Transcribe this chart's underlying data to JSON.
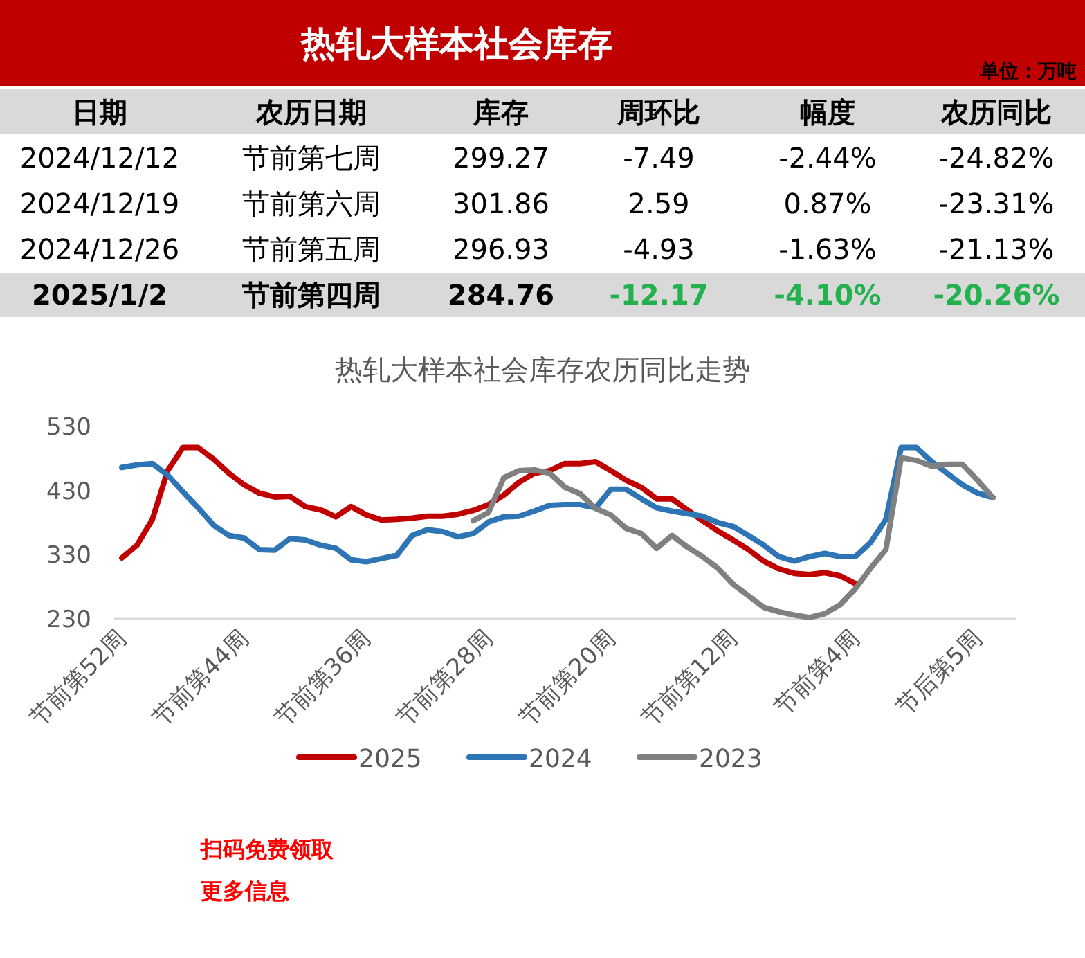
{
  "chart_data": [
    {
      "type": "other",
      "title": "热轧大样本社会库存",
      "subtitle": "单位：万吨",
      "annotations": [
        "日期",
        "农历日期",
        "库存",
        "周环比",
        "幅度",
        "农历同比",
        "2024/12/12",
        "节前第七周",
        "299.27",
        "-7.49",
        "-2.44%",
        "-24.82%",
        "2024/12/19",
        "节前第六周",
        "301.86",
        "2.59",
        "0.87%",
        "-23.31%",
        "2024/12/26",
        "节前第五周",
        "296.93",
        "-4.93",
        "-1.63%",
        "-21.13%",
        "2025/1/2",
        "节前第四周",
        "284.76",
        "-12.17",
        "-4.10%",
        "-20.26%"
      ]
    },
    {
      "type": "line",
      "title": "热轧大样本社会库存农历同比走势",
      "categories": [
        "节前第52周",
        null,
        null,
        null,
        null,
        null,
        null,
        null,
        "节前第44周",
        null,
        null,
        null,
        null,
        null,
        null,
        null,
        "节前第36周",
        null,
        null,
        null,
        null,
        null,
        null,
        null,
        "节前第28周",
        null,
        null,
        null,
        null,
        null,
        null,
        null,
        "节前第20周",
        null,
        null,
        null,
        null,
        null,
        null,
        null,
        "节前第12周",
        null,
        null,
        null,
        null,
        null,
        null,
        null,
        "节前第4周",
        null,
        null,
        null,
        null,
        null,
        null,
        null,
        "节后第5周",
        null,
        null
      ],
      "series": [
        {
          "name": "2025",
          "color": "#c00000",
          "values": [
            325,
            345,
            385,
            461,
            497,
            497,
            479,
            457,
            439,
            426,
            420,
            421,
            405,
            400,
            389,
            405,
            392,
            384,
            385,
            387,
            390,
            390,
            393,
            399,
            408,
            423,
            443,
            457,
            461,
            472,
            472,
            475,
            461,
            446,
            435,
            417,
            417,
            400,
            383,
            367,
            353,
            338,
            320,
            308,
            301,
            299,
            302,
            297,
            285,
            null,
            null,
            null,
            null,
            null,
            null,
            null,
            null,
            null,
            null
          ]
        },
        {
          "name": "2024",
          "color": "#2e75b6",
          "values": [
            466,
            470,
            472,
            454,
            428,
            403,
            376,
            360,
            356,
            338,
            337,
            355,
            353,
            345,
            340,
            322,
            319,
            324,
            329,
            360,
            369,
            366,
            358,
            363,
            381,
            389,
            390,
            398,
            407,
            408,
            408,
            403,
            432,
            432,
            417,
            403,
            398,
            394,
            390,
            380,
            374,
            360,
            345,
            327,
            320,
            327,
            332,
            327,
            327,
            349,
            385,
            497,
            497,
            475,
            457,
            439,
            426,
            419,
            null
          ]
        },
        {
          "name": "2023",
          "color": "#808080",
          "values": [
            null,
            null,
            null,
            null,
            null,
            null,
            null,
            null,
            null,
            null,
            null,
            null,
            null,
            null,
            null,
            null,
            null,
            null,
            null,
            null,
            null,
            null,
            null,
            383,
            396,
            450,
            461,
            462,
            457,
            435,
            425,
            402,
            392,
            371,
            363,
            340,
            360,
            342,
            327,
            309,
            284,
            266,
            248,
            241,
            236,
            232,
            238,
            252,
            277,
            309,
            338,
            481,
            477,
            468,
            471,
            471,
            446,
            419,
            null
          ]
        }
      ],
      "ylim": [
        230,
        530
      ],
      "yticks": [
        230,
        330,
        430,
        530
      ],
      "legend": "bottom",
      "annotations": [
        "扫码免费领取",
        "更多信息"
      ]
    }
  ]
}
